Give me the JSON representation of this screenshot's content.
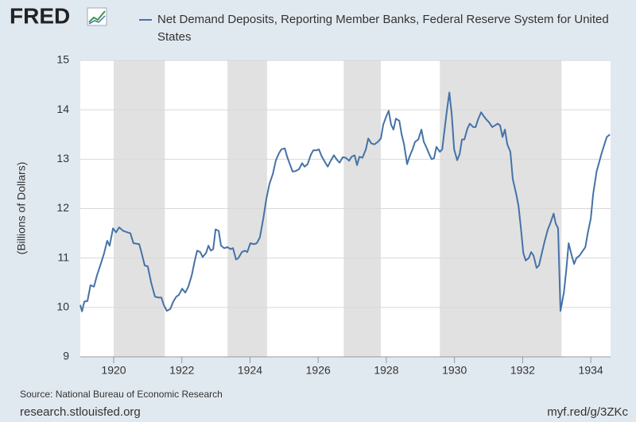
{
  "chart_data": {
    "type": "line",
    "logo": "FRED",
    "y_label": "(Billions of Dollars)",
    "source": "Source: National Bureau of Economic Research",
    "site": "research.stlouisfed.org",
    "short_link": "myf.red/g/3ZKc",
    "xlim": [
      1919.02,
      1934.58
    ],
    "xticks": [
      1920,
      1922,
      1924,
      1926,
      1928,
      1930,
      1932,
      1934
    ],
    "ylim": [
      9,
      15
    ],
    "yticks": [
      9,
      10,
      11,
      12,
      13,
      14,
      15
    ],
    "grid": true,
    "recessions": [
      [
        1920.0,
        1921.5
      ],
      [
        1923.34,
        1924.5
      ],
      [
        1926.75,
        1927.84
      ],
      [
        1929.57,
        1933.14
      ]
    ],
    "recession_color": "#e1e1e1",
    "x": [
      1919.02,
      1919.07,
      1919.14,
      1919.23,
      1919.32,
      1919.42,
      1919.51,
      1919.63,
      1919.72,
      1919.81,
      1919.88,
      1919.98,
      1920.07,
      1920.16,
      1920.28,
      1920.4,
      1920.49,
      1920.58,
      1920.75,
      1920.82,
      1920.91,
      1921.0,
      1921.1,
      1921.21,
      1921.31,
      1921.4,
      1921.47,
      1921.56,
      1921.66,
      1921.75,
      1921.84,
      1921.91,
      1922.01,
      1922.1,
      1922.19,
      1922.29,
      1922.38,
      1922.45,
      1922.54,
      1922.61,
      1922.71,
      1922.78,
      1922.85,
      1922.92,
      1922.99,
      1923.08,
      1923.15,
      1923.24,
      1923.34,
      1923.43,
      1923.5,
      1923.59,
      1923.66,
      1923.76,
      1923.85,
      1923.92,
      1924.01,
      1924.11,
      1924.2,
      1924.29,
      1924.39,
      1924.48,
      1924.57,
      1924.67,
      1924.76,
      1924.85,
      1924.92,
      1925.02,
      1925.09,
      1925.18,
      1925.25,
      1925.34,
      1925.44,
      1925.53,
      1925.6,
      1925.69,
      1925.79,
      1925.86,
      1925.95,
      1926.02,
      1926.11,
      1926.21,
      1926.28,
      1926.37,
      1926.46,
      1926.56,
      1926.63,
      1926.72,
      1926.81,
      1926.91,
      1926.98,
      1927.07,
      1927.14,
      1927.21,
      1927.3,
      1927.4,
      1927.47,
      1927.56,
      1927.65,
      1927.75,
      1927.84,
      1927.91,
      1928.0,
      1928.07,
      1928.14,
      1928.21,
      1928.28,
      1928.38,
      1928.45,
      1928.52,
      1928.61,
      1928.68,
      1928.77,
      1928.84,
      1928.94,
      1929.03,
      1929.1,
      1929.17,
      1929.26,
      1929.33,
      1929.4,
      1929.47,
      1929.57,
      1929.64,
      1929.71,
      1929.78,
      1929.85,
      1929.92,
      1929.99,
      1930.08,
      1930.15,
      1930.22,
      1930.29,
      1930.38,
      1930.45,
      1930.55,
      1930.62,
      1930.69,
      1930.78,
      1930.85,
      1930.94,
      1931.01,
      1931.11,
      1931.18,
      1931.27,
      1931.34,
      1931.41,
      1931.48,
      1931.55,
      1931.64,
      1931.71,
      1931.81,
      1931.88,
      1931.95,
      1932.02,
      1932.09,
      1932.18,
      1932.25,
      1932.32,
      1932.41,
      1932.48,
      1932.58,
      1932.65,
      1932.74,
      1932.81,
      1932.91,
      1932.97,
      1933.04,
      1933.11,
      1933.21,
      1933.28,
      1933.35,
      1933.44,
      1933.51,
      1933.58,
      1933.67,
      1933.74,
      1933.84,
      1933.91,
      1934.0,
      1934.07,
      1934.17,
      1934.23,
      1934.33,
      1934.4,
      1934.47,
      1934.56
    ],
    "series": [
      {
        "name": "Net Demand Deposits, Reporting Member Banks, Federal Reserve System for United States",
        "color": "#4572a7",
        "values": [
          10.05,
          9.92,
          10.12,
          10.13,
          10.45,
          10.42,
          10.65,
          10.9,
          11.1,
          11.35,
          11.25,
          11.6,
          11.52,
          11.62,
          11.55,
          11.52,
          11.5,
          11.3,
          11.28,
          11.1,
          10.85,
          10.83,
          10.5,
          10.22,
          10.2,
          10.2,
          10.05,
          9.93,
          9.97,
          10.12,
          10.22,
          10.25,
          10.38,
          10.3,
          10.42,
          10.65,
          10.95,
          11.15,
          11.12,
          11.02,
          11.1,
          11.25,
          11.15,
          11.18,
          11.58,
          11.55,
          11.25,
          11.2,
          11.22,
          11.18,
          11.2,
          10.97,
          11.0,
          11.12,
          11.15,
          11.12,
          11.3,
          11.28,
          11.3,
          11.42,
          11.8,
          12.2,
          12.5,
          12.7,
          12.98,
          13.12,
          13.2,
          13.22,
          13.05,
          12.88,
          12.75,
          12.76,
          12.8,
          12.92,
          12.85,
          12.9,
          13.1,
          13.18,
          13.18,
          13.2,
          13.05,
          12.93,
          12.85,
          12.97,
          13.08,
          12.98,
          12.93,
          13.04,
          13.03,
          12.97,
          13.05,
          13.08,
          12.88,
          13.05,
          13.03,
          13.2,
          13.42,
          13.32,
          13.3,
          13.35,
          13.42,
          13.7,
          13.87,
          13.98,
          13.7,
          13.6,
          13.82,
          13.78,
          13.5,
          13.3,
          12.9,
          13.05,
          13.2,
          13.35,
          13.4,
          13.6,
          13.35,
          13.25,
          13.1,
          13.0,
          13.02,
          13.25,
          13.15,
          13.2,
          13.6,
          14.0,
          14.35,
          13.9,
          13.2,
          12.98,
          13.1,
          13.4,
          13.4,
          13.62,
          13.72,
          13.65,
          13.65,
          13.8,
          13.95,
          13.88,
          13.8,
          13.75,
          13.65,
          13.68,
          13.72,
          13.68,
          13.45,
          13.6,
          13.3,
          13.15,
          12.6,
          12.3,
          12.05,
          11.6,
          11.1,
          10.95,
          11.0,
          11.12,
          11.05,
          10.8,
          10.85,
          11.15,
          11.35,
          11.58,
          11.7,
          11.9,
          11.7,
          11.6,
          9.93,
          10.3,
          10.75,
          11.3,
          11.05,
          10.88,
          11.0,
          11.05,
          11.12,
          11.22,
          11.5,
          11.8,
          12.3,
          12.75,
          12.9,
          13.15,
          13.3,
          13.45,
          13.5
        ]
      }
    ]
  }
}
